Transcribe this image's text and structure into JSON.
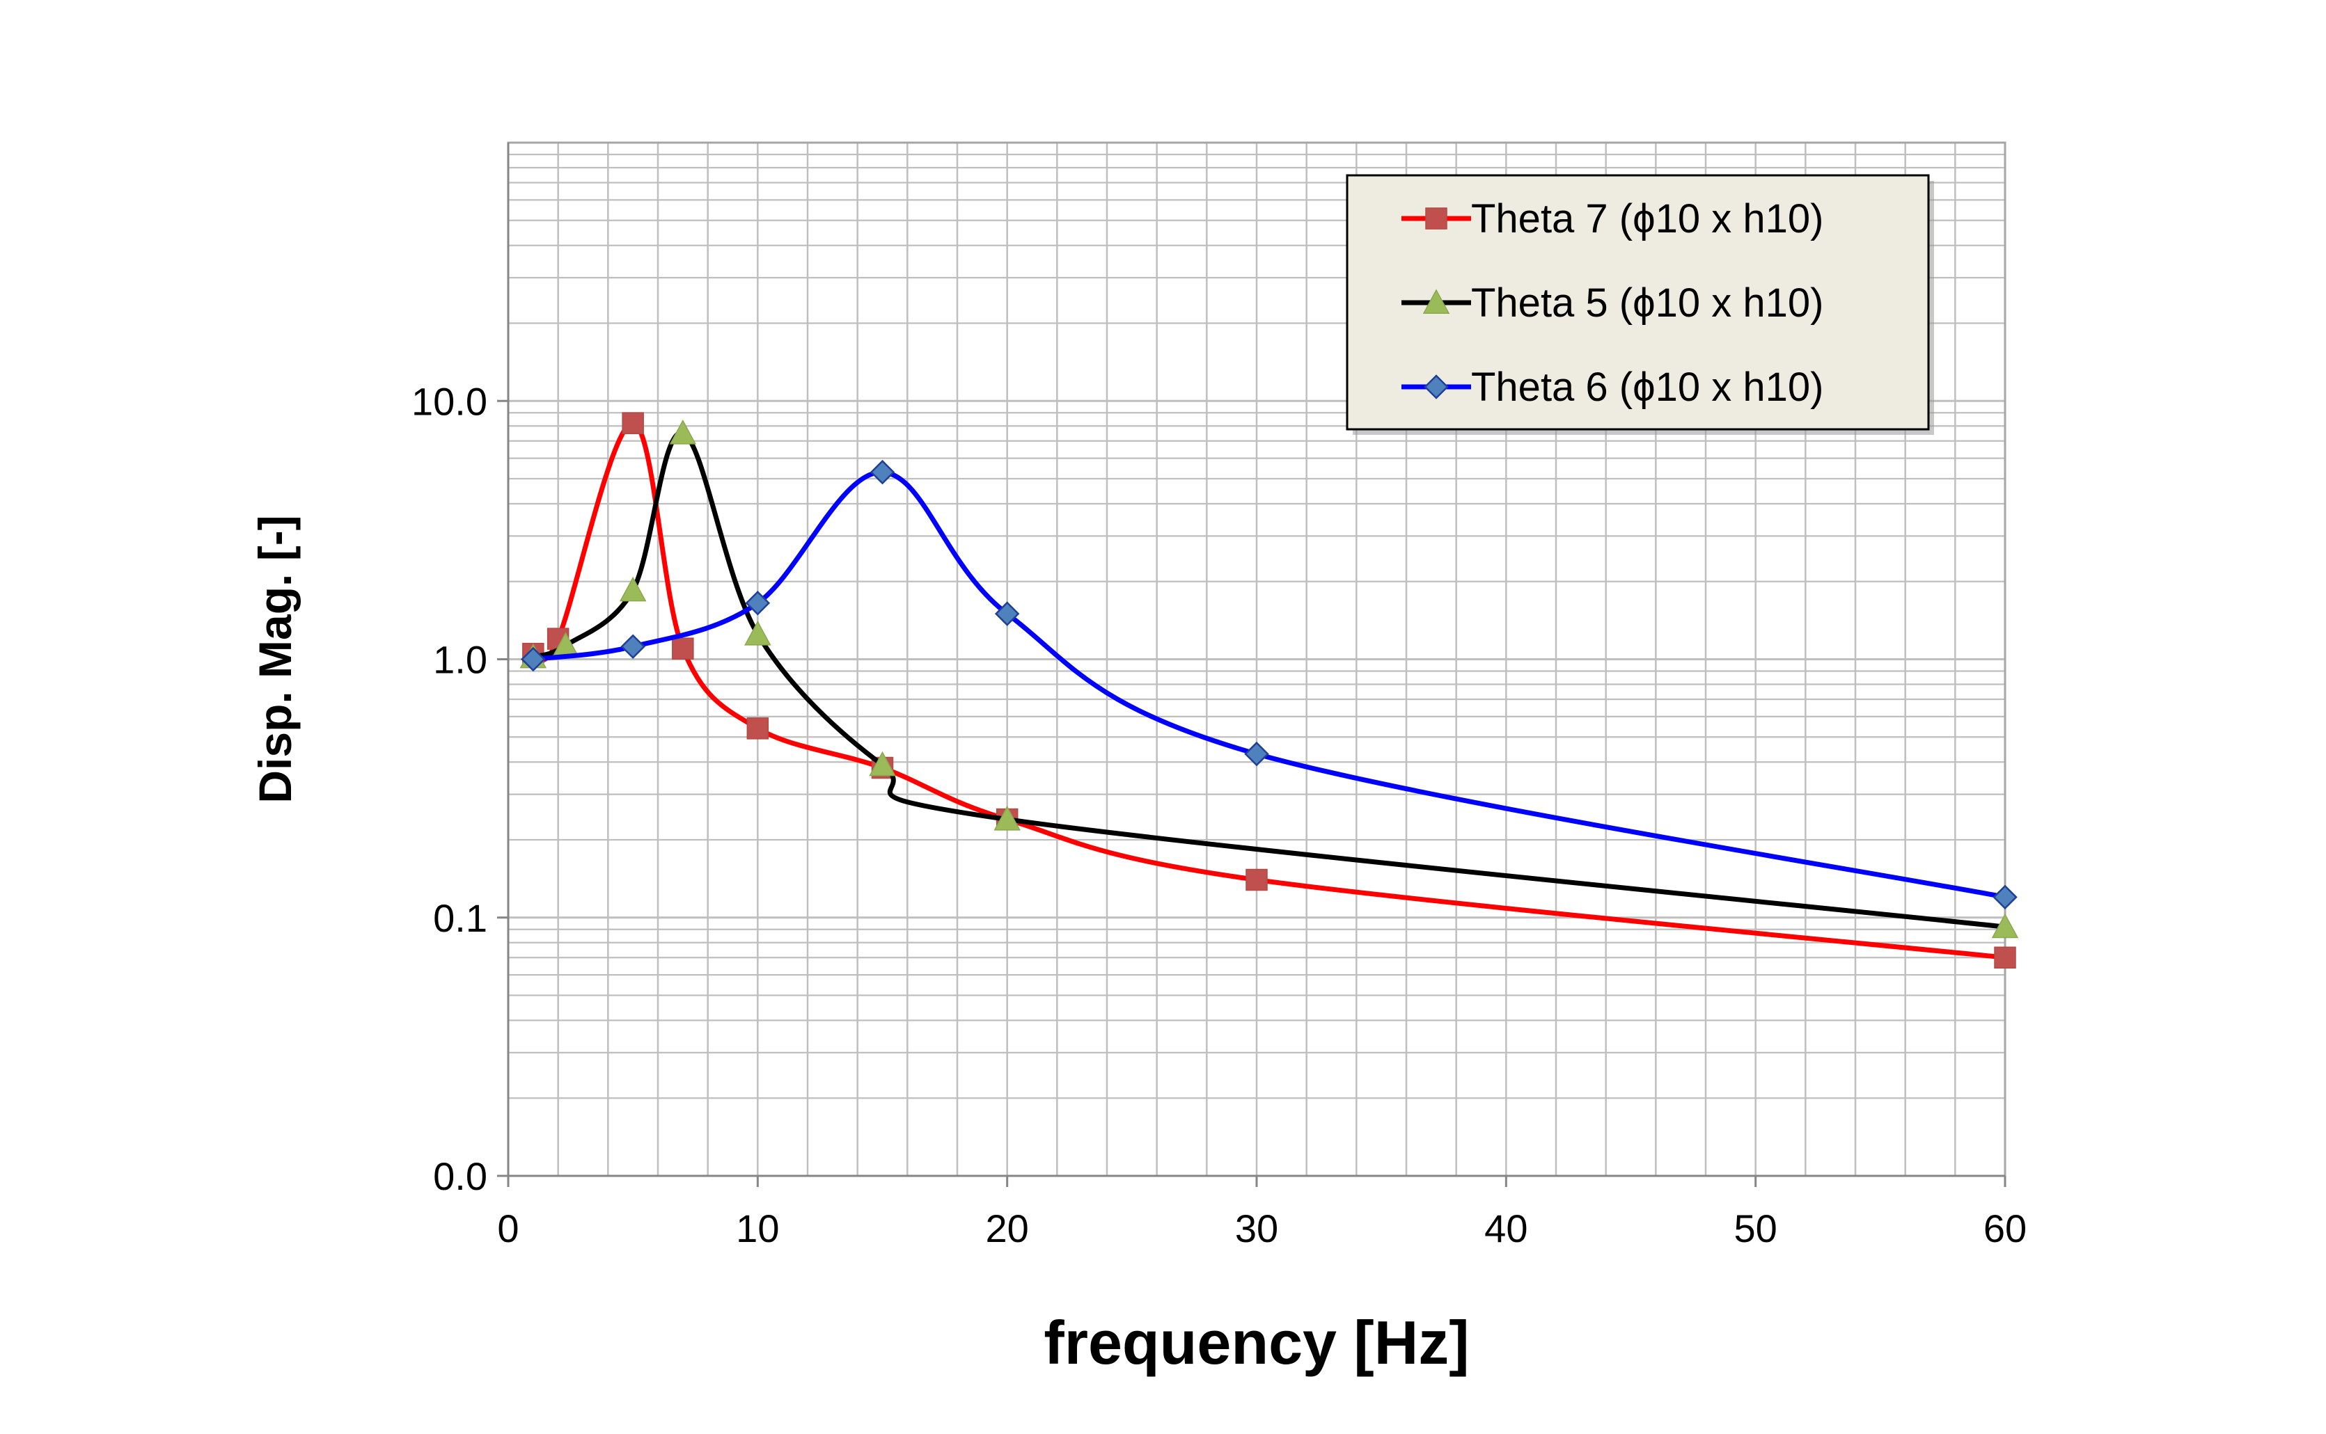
{
  "chart_data": {
    "type": "line",
    "title": "",
    "xlabel": "frequency [Hz]",
    "ylabel": "Disp. Mag. [-]",
    "xlim": [
      0,
      60
    ],
    "ylim": [
      0.01,
      100
    ],
    "yscale": "log",
    "x_ticks": [
      "0",
      "10",
      "20",
      "30",
      "40",
      "50",
      "60"
    ],
    "y_ticks": [
      {
        "value": 0.01,
        "label": "0.0"
      },
      {
        "value": 0.1,
        "label": "0.1"
      },
      {
        "value": 1,
        "label": "1.0"
      },
      {
        "value": 10,
        "label": "10.0"
      }
    ],
    "grid": true,
    "legend_position": "top-right",
    "series": [
      {
        "name": "Theta 7 (ϕ10 x h10)",
        "color": "#ff0000",
        "marker": "square",
        "marker_color": "#c0504d",
        "x": [
          1,
          2,
          5,
          7,
          10,
          15,
          20,
          30,
          60
        ],
        "y": [
          1.05,
          1.2,
          8.2,
          1.1,
          0.54,
          0.38,
          0.24,
          0.14,
          0.07
        ]
      },
      {
        "name": "Theta 5 (ϕ10 x h10)",
        "color": "#000000",
        "marker": "triangle",
        "marker_color": "#9bbb59",
        "x": [
          1,
          2.3,
          5,
          7,
          10,
          15,
          20,
          60
        ],
        "y": [
          1.02,
          1.13,
          1.85,
          7.5,
          1.25,
          0.39,
          0.24,
          0.092
        ]
      },
      {
        "name": "Theta 6 (ϕ10 x h10)",
        "color": "#0000ff",
        "marker": "diamond",
        "marker_color": "#4f81bd",
        "x": [
          1,
          5,
          10,
          15,
          20,
          30,
          60
        ],
        "y": [
          1.0,
          1.12,
          1.65,
          5.3,
          1.5,
          0.43,
          0.12
        ]
      }
    ]
  }
}
